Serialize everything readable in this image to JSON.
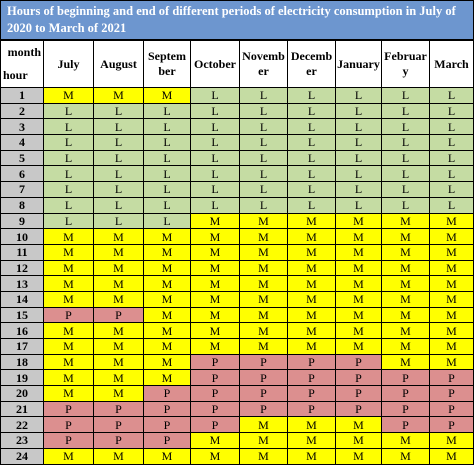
{
  "title": "Hours of beginning and end of different periods of electricity consumption in July of 2020 to March of 2021",
  "corner": {
    "month_label": "month",
    "hour_label": "hour"
  },
  "months": [
    "July",
    "August",
    "September",
    "October",
    "November",
    "December",
    "January",
    "February",
    "March"
  ],
  "month_headers": [
    "July",
    "August",
    "Septem ber",
    "October",
    "Novemb er",
    "Decemb er",
    "January",
    "February",
    "March"
  ],
  "rows": [
    {
      "hour": "1",
      "values": [
        "M",
        "M",
        "M",
        "L",
        "L",
        "L",
        "L",
        "L",
        "L"
      ]
    },
    {
      "hour": "2",
      "values": [
        "L",
        "L",
        "L",
        "L",
        "L",
        "L",
        "L",
        "L",
        "L"
      ]
    },
    {
      "hour": "3",
      "values": [
        "L",
        "L",
        "L",
        "L",
        "L",
        "L",
        "L",
        "L",
        "L"
      ]
    },
    {
      "hour": "4",
      "values": [
        "L",
        "L",
        "L",
        "L",
        "L",
        "L",
        "L",
        "L",
        "L"
      ]
    },
    {
      "hour": "5",
      "values": [
        "L",
        "L",
        "L",
        "L",
        "L",
        "L",
        "L",
        "L",
        "L"
      ]
    },
    {
      "hour": "6",
      "values": [
        "L",
        "L",
        "L",
        "L",
        "L",
        "L",
        "L",
        "L",
        "L"
      ]
    },
    {
      "hour": "7",
      "values": [
        "L",
        "L",
        "L",
        "L",
        "L",
        "L",
        "L",
        "L",
        "L"
      ]
    },
    {
      "hour": "8",
      "values": [
        "L",
        "L",
        "L",
        "L",
        "L",
        "L",
        "L",
        "L",
        "L"
      ]
    },
    {
      "hour": "9",
      "values": [
        "L",
        "L",
        "L",
        "M",
        "M",
        "M",
        "M",
        "M",
        "M"
      ]
    },
    {
      "hour": "10",
      "values": [
        "M",
        "M",
        "M",
        "M",
        "M",
        "M",
        "M",
        "M",
        "M"
      ]
    },
    {
      "hour": "11",
      "values": [
        "M",
        "M",
        "M",
        "M",
        "M",
        "M",
        "M",
        "M",
        "M"
      ]
    },
    {
      "hour": "12",
      "values": [
        "M",
        "M",
        "M",
        "M",
        "M",
        "M",
        "M",
        "M",
        "M"
      ]
    },
    {
      "hour": "13",
      "values": [
        "M",
        "M",
        "M",
        "M",
        "M",
        "M",
        "M",
        "M",
        "M"
      ]
    },
    {
      "hour": "14",
      "values": [
        "M",
        "M",
        "M",
        "M",
        "M",
        "M",
        "M",
        "M",
        "M"
      ]
    },
    {
      "hour": "15",
      "values": [
        "P",
        "P",
        "M",
        "M",
        "M",
        "M",
        "M",
        "M",
        "M"
      ]
    },
    {
      "hour": "16",
      "values": [
        "M",
        "M",
        "M",
        "M",
        "M",
        "M",
        "M",
        "M",
        "M"
      ]
    },
    {
      "hour": "17",
      "values": [
        "M",
        "M",
        "M",
        "M",
        "M",
        "M",
        "M",
        "M",
        "M"
      ]
    },
    {
      "hour": "18",
      "values": [
        "M",
        "M",
        "M",
        "P",
        "P",
        "P",
        "P",
        "M",
        "M"
      ]
    },
    {
      "hour": "19",
      "values": [
        "M",
        "M",
        "M",
        "P",
        "P",
        "P",
        "P",
        "P",
        "P"
      ]
    },
    {
      "hour": "20",
      "values": [
        "M",
        "M",
        "P",
        "P",
        "P",
        "P",
        "P",
        "P",
        "P"
      ]
    },
    {
      "hour": "21",
      "values": [
        "P",
        "P",
        "P",
        "P",
        "P",
        "P",
        "P",
        "P",
        "P"
      ]
    },
    {
      "hour": "22",
      "values": [
        "P",
        "P",
        "P",
        "P",
        "M",
        "M",
        "M",
        "P",
        "P"
      ]
    },
    {
      "hour": "23",
      "values": [
        "P",
        "P",
        "P",
        "M",
        "M",
        "M",
        "M",
        "M",
        "M"
      ]
    },
    {
      "hour": "24",
      "values": [
        "M",
        "M",
        "M",
        "M",
        "M",
        "M",
        "M",
        "M",
        "M"
      ]
    }
  ],
  "colors": {
    "L": "#c5dca3",
    "M": "#ffff00",
    "P": "#dc8f8f",
    "hour": "#c8c8c8",
    "title_bg": "#6d96cf"
  }
}
